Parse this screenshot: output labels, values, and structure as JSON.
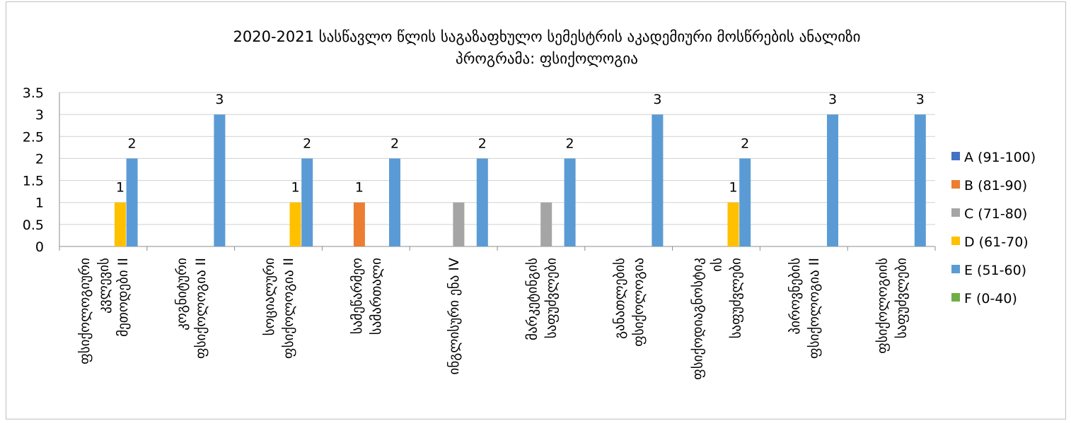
{
  "chart_data": {
    "type": "bar",
    "title_line1": "2020-2021  სასწავლო წლის საგაზაფხულო სემესტრის აკადემიური მოსწრების ანალიზი",
    "title_line2": "პროგრამა: ფსიქოლოგია",
    "xlabel": "",
    "ylabel": "",
    "ylim": [
      0,
      3.5
    ],
    "yticks": [
      "0",
      "0.5",
      "1",
      "1.5",
      "2",
      "2.5",
      "3",
      "3.5"
    ],
    "grid": true,
    "legend_position": "right",
    "categories": [
      [
        "ფსიქოლოგიური",
        "კვლევის",
        "მეთოდები II"
      ],
      [
        "კოგნიტური",
        "ფსიქოლოგია II"
      ],
      [
        "სოციალური",
        "ფსიქოლოგია II"
      ],
      [
        "სამეწარმეო",
        "სამართალი"
      ],
      [
        "ინგლისური ენა IV"
      ],
      [
        "მარკეტინგის",
        "საფუძვლები"
      ],
      [
        "განათლების",
        "ფსიქოლოგია"
      ],
      [
        "ფსიქოდიაგნოსტიკ",
        "ის",
        "საფუძვლები"
      ],
      [
        "პიროვნების",
        "ფსიქოლოგია II"
      ],
      [
        "ფსიქოლოგიის",
        "საფუძვლები"
      ]
    ],
    "series": [
      {
        "name": "A (91-100)",
        "color": "#4472c4",
        "values": [
          0,
          0,
          0,
          0,
          0,
          0,
          0,
          0,
          0,
          0
        ],
        "labels": [
          false,
          false,
          false,
          false,
          false,
          false,
          false,
          false,
          false,
          false
        ]
      },
      {
        "name": "B (81-90)",
        "color": "#ed7d31",
        "values": [
          0,
          0,
          0,
          1,
          0,
          0,
          0,
          0,
          0,
          0
        ],
        "labels": [
          false,
          false,
          false,
          true,
          false,
          false,
          false,
          false,
          false,
          false
        ]
      },
      {
        "name": "C (71-80)",
        "color": "#a5a5a5",
        "values": [
          0,
          0,
          0,
          0,
          1,
          1,
          0,
          0,
          0,
          0
        ],
        "labels": [
          false,
          false,
          false,
          false,
          false,
          false,
          false,
          false,
          false,
          false
        ]
      },
      {
        "name": "D (61-70)",
        "color": "#ffc000",
        "values": [
          1,
          0,
          1,
          0,
          0,
          0,
          0,
          1,
          0,
          0
        ],
        "labels": [
          true,
          false,
          true,
          false,
          false,
          false,
          false,
          true,
          false,
          false
        ]
      },
      {
        "name": "E (51-60)",
        "color": "#5b9bd5",
        "values": [
          2,
          3,
          2,
          2,
          2,
          2,
          3,
          2,
          3,
          3
        ],
        "labels": [
          true,
          true,
          true,
          true,
          true,
          true,
          true,
          true,
          true,
          true
        ]
      },
      {
        "name": "F (0-40)",
        "color": "#70ad47",
        "values": [
          0,
          0,
          0,
          0,
          0,
          0,
          0,
          0,
          0,
          0
        ],
        "labels": [
          false,
          false,
          false,
          false,
          false,
          false,
          false,
          false,
          false,
          false
        ]
      }
    ]
  }
}
